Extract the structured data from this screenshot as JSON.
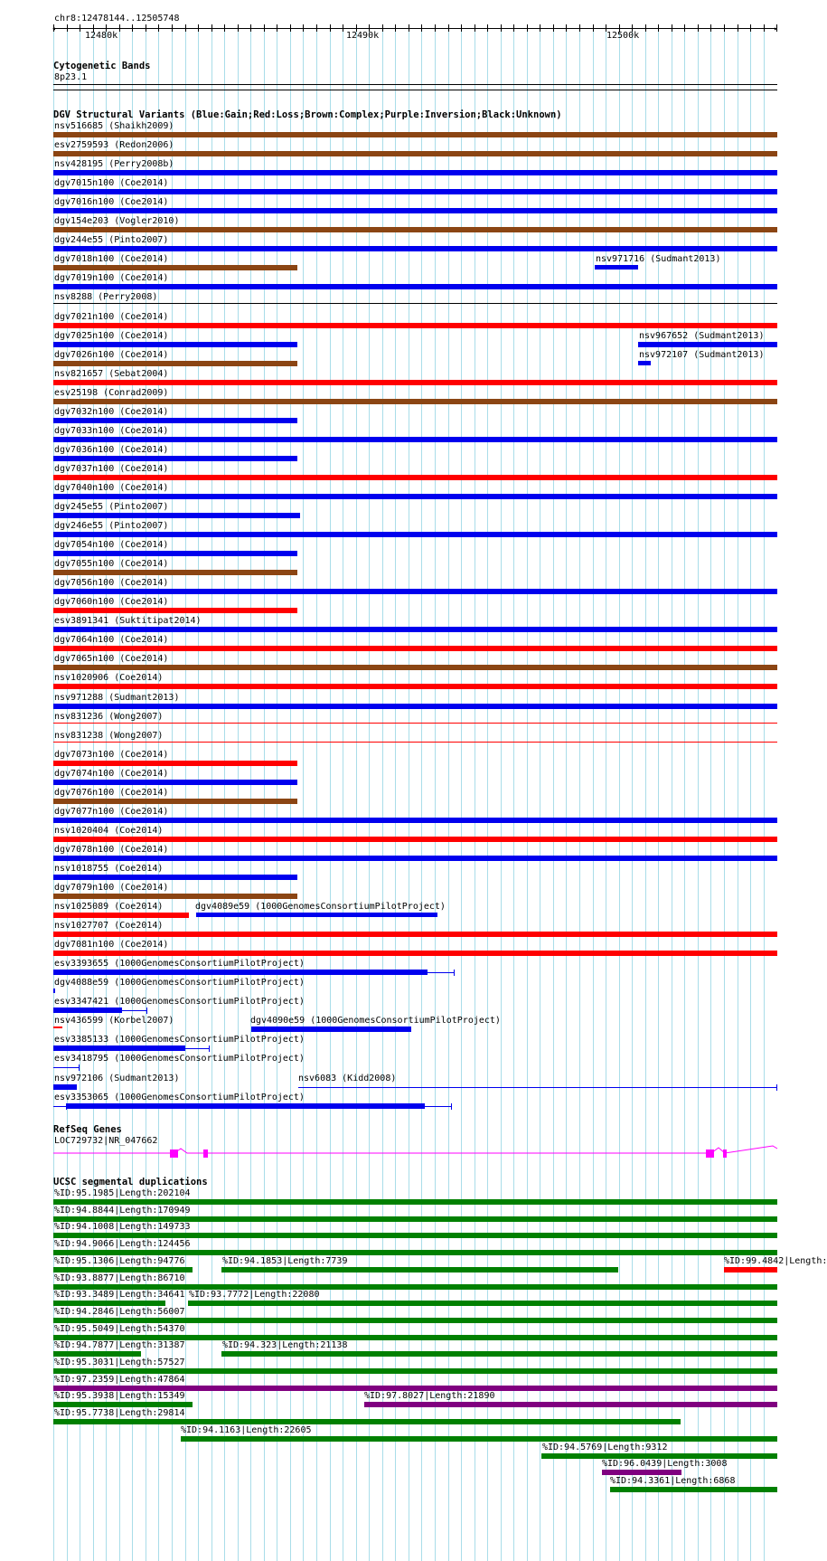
{
  "ruler": {
    "region": "chr8:12478144..12505748",
    "labels": [
      "12480k",
      "12490k",
      "12500k"
    ]
  },
  "tracks": {
    "cytoband": {
      "title": "Cytogenetic Bands",
      "band": "8p23.1"
    },
    "dgv": {
      "title": "DGV Structural Variants (Blue:Gain;Red:Loss;Brown:Complex;Purple:Inversion;Black:Unknown)"
    },
    "refseq": {
      "title": "RefSeq Genes",
      "gene": "LOC729732|NR_047662"
    },
    "segdup": {
      "title": "UCSC segmental duplications"
    }
  },
  "colors": {
    "gain": "#0000ee",
    "loss": "#ff0000",
    "complex": "#8b4513",
    "inversion": "#800080",
    "unknown": "#000000",
    "segdup_green": "#008000",
    "gene_magenta": "#ff00ff",
    "grid": "#a9dde9"
  },
  "dgv_rows": [
    [
      {
        "label": "nsv516685 (Shaikh2009)",
        "type": "complex",
        "bar": "full"
      }
    ],
    [
      {
        "label": "esv2759593 (Redon2006)",
        "type": "complex",
        "bar": "full"
      }
    ],
    [
      {
        "label": "nsv428195 (Perry2008b)",
        "type": "gain",
        "bar": "full"
      }
    ],
    [
      {
        "label": "dgv7015n100 (Coe2014)",
        "type": "gain",
        "bar": "full"
      }
    ],
    [
      {
        "label": "dgv7016n100 (Coe2014)",
        "type": "gain",
        "bar": "full"
      }
    ],
    [
      {
        "label": "dgv154e203 (Vogler2010)",
        "type": "complex",
        "bar": "full"
      }
    ],
    [
      {
        "label": "dgv244e55 (Pinto2007)",
        "type": "gain",
        "bar": "full"
      }
    ],
    [
      {
        "label": "dgv7018n100 (Coe2014)",
        "type": "complex",
        "bar": "short"
      },
      {
        "label": "nsv971716 (Sudmant2013)",
        "type": "gain",
        "bar": "s971716"
      }
    ],
    [
      {
        "label": "dgv7019n100 (Coe2014)",
        "type": "gain",
        "bar": "full"
      }
    ],
    [
      {
        "label": "nsv8288 (Perry2008)",
        "type": "unknown",
        "bar": "fullthin"
      }
    ],
    [
      {
        "label": "dgv7021n100 (Coe2014)",
        "type": "loss",
        "bar": "full"
      }
    ],
    [
      {
        "label": "dgv7025n100 (Coe2014)",
        "type": "gain",
        "bar": "short"
      },
      {
        "label": "nsv967652 (Sudmant2013)",
        "type": "gain",
        "bar": "s967652"
      }
    ],
    [
      {
        "label": "dgv7026n100 (Coe2014)",
        "type": "complex",
        "bar": "short"
      },
      {
        "label": "nsv972107 (Sudmant2013)",
        "type": "gain",
        "bar": "s972107"
      }
    ],
    [
      {
        "label": "nsv821657 (Sebat2004)",
        "type": "loss",
        "bar": "full"
      }
    ],
    [
      {
        "label": "esv25198 (Conrad2009)",
        "type": "complex",
        "bar": "full"
      }
    ],
    [
      {
        "label": "dgv7032n100 (Coe2014)",
        "type": "gain",
        "bar": "short"
      }
    ],
    [
      {
        "label": "dgv7033n100 (Coe2014)",
        "type": "gain",
        "bar": "full"
      }
    ],
    [
      {
        "label": "dgv7036n100 (Coe2014)",
        "type": "gain",
        "bar": "short"
      }
    ],
    [
      {
        "label": "dgv7037n100 (Coe2014)",
        "type": "loss",
        "bar": "full"
      }
    ],
    [
      {
        "label": "dgv7040n100 (Coe2014)",
        "type": "gain",
        "bar": "full"
      }
    ],
    [
      {
        "label": "dgv245e55 (Pinto2007)",
        "type": "gain",
        "bar": "short2"
      }
    ],
    [
      {
        "label": "dgv246e55 (Pinto2007)",
        "type": "gain",
        "bar": "full"
      }
    ],
    [
      {
        "label": "dgv7054n100 (Coe2014)",
        "type": "gain",
        "bar": "short"
      }
    ],
    [
      {
        "label": "dgv7055n100 (Coe2014)",
        "type": "complex",
        "bar": "short"
      }
    ],
    [
      {
        "label": "dgv7056n100 (Coe2014)",
        "type": "gain",
        "bar": "full"
      }
    ],
    [
      {
        "label": "dgv7060n100 (Coe2014)",
        "type": "loss",
        "bar": "short"
      }
    ],
    [
      {
        "label": "esv3891341 (Suktitipat2014)",
        "type": "gain",
        "bar": "full"
      }
    ],
    [
      {
        "label": "dgv7064n100 (Coe2014)",
        "type": "loss",
        "bar": "full"
      }
    ],
    [
      {
        "label": "dgv7065n100 (Coe2014)",
        "type": "complex",
        "bar": "full"
      }
    ],
    [
      {
        "label": "nsv1020906 (Coe2014)",
        "type": "loss",
        "bar": "full"
      }
    ],
    [
      {
        "label": "nsv971288 (Sudmant2013)",
        "type": "gain",
        "bar": "full"
      }
    ],
    [
      {
        "label": "nsv831236 (Wong2007)",
        "type": "loss",
        "bar": "fullthin"
      }
    ],
    [
      {
        "label": "nsv831238 (Wong2007)",
        "type": "loss",
        "bar": "fullthin"
      }
    ],
    [
      {
        "label": "dgv7073n100 (Coe2014)",
        "type": "loss",
        "bar": "short"
      }
    ],
    [
      {
        "label": "dgv7074n100 (Coe2014)",
        "type": "gain",
        "bar": "short"
      }
    ],
    [
      {
        "label": "dgv7076n100 (Coe2014)",
        "type": "complex",
        "bar": "short"
      }
    ],
    [
      {
        "label": "dgv7077n100 (Coe2014)",
        "type": "gain",
        "bar": "full"
      }
    ],
    [
      {
        "label": "nsv1020404 (Coe2014)",
        "type": "loss",
        "bar": "full"
      }
    ],
    [
      {
        "label": "dgv7078n100 (Coe2014)",
        "type": "gain",
        "bar": "full"
      }
    ],
    [
      {
        "label": "nsv1018755 (Coe2014)",
        "type": "gain",
        "bar": "short"
      }
    ],
    [
      {
        "label": "dgv7079n100 (Coe2014)",
        "type": "complex",
        "bar": "short"
      }
    ],
    [
      {
        "label": "nsv1025089 (Coe2014)",
        "type": "loss",
        "bar": "s1025089"
      },
      {
        "label": "dgv4089e59 (1000GenomesConsortiumPilotProject)",
        "type": "gain",
        "bar": "s4089"
      }
    ],
    [
      {
        "label": "nsv1027707 (Coe2014)",
        "type": "loss",
        "bar": "full"
      }
    ],
    [
      {
        "label": "dgv7081n100 (Coe2014)",
        "type": "loss",
        "bar": "full"
      }
    ],
    [
      {
        "label": "esv3393655 (1000GenomesConsortiumPilotProject)",
        "type": "gain",
        "bar": "s3393655"
      }
    ],
    [
      {
        "label": "dgv4088e59 (1000GenomesConsortiumPilotProject)",
        "type": "gain",
        "bar": "s4088"
      }
    ],
    [
      {
        "label": "esv3347421 (1000GenomesConsortiumPilotProject)",
        "type": "gain",
        "bar": "s3347421"
      }
    ],
    [
      {
        "label": "nsv436599 (Korbel2007)",
        "type": "loss",
        "bar": "s436599"
      },
      {
        "label": "dgv4090e59 (1000GenomesConsortiumPilotProject)",
        "type": "gain",
        "bar": "s4090"
      }
    ],
    [
      {
        "label": "esv3385133 (1000GenomesConsortiumPilotProject)",
        "type": "gain",
        "bar": "s3385133"
      }
    ],
    [
      {
        "label": "esv3418795 (1000GenomesConsortiumPilotProject)",
        "type": "gain",
        "bar": "s3418795"
      }
    ],
    [
      {
        "label": "nsv972106 (Sudmant2013)",
        "type": "gain",
        "bar": "s972106"
      },
      {
        "label": "nsv6083 (Kidd2008)",
        "type": "gain",
        "bar": "s6083"
      }
    ],
    [
      {
        "label": "esv3353065 (1000GenomesConsortiumPilotProject)",
        "type": "gain",
        "bar": "s3353065"
      }
    ]
  ],
  "segdup_rows": [
    [
      {
        "label": "%ID:95.1985|Length:202104",
        "color": "green",
        "bar": "full"
      }
    ],
    [
      {
        "label": "%ID:94.8844|Length:170949",
        "color": "green",
        "bar": "full"
      }
    ],
    [
      {
        "label": "%ID:94.1008|Length:149733",
        "color": "green",
        "bar": "full"
      }
    ],
    [
      {
        "label": "%ID:94.9066|Length:124456",
        "color": "green",
        "bar": "full"
      }
    ],
    [
      {
        "label": "%ID:95.1306|Length:94776",
        "color": "green",
        "bar": "d1"
      },
      {
        "label": "%ID:94.1853|Length:7739",
        "color": "green",
        "bar": "d2"
      },
      {
        "label": "%ID:99.4842|Length:",
        "color": "red",
        "bar": "d3"
      }
    ],
    [
      {
        "label": "%ID:93.8877|Length:86710",
        "color": "green",
        "bar": "full"
      }
    ],
    [
      {
        "label": "%ID:93.3489|Length:34641",
        "color": "green",
        "bar": "d4"
      },
      {
        "label": "%ID:93.7772|Length:22080",
        "color": "green",
        "bar": "d5"
      }
    ],
    [
      {
        "label": "%ID:94.2846|Length:56007",
        "color": "green",
        "bar": "full"
      }
    ],
    [
      {
        "label": "%ID:95.5049|Length:54370",
        "color": "green",
        "bar": "full"
      }
    ],
    [
      {
        "label": "%ID:94.7877|Length:31387",
        "color": "green",
        "bar": "d6"
      },
      {
        "label": "%ID:94.323|Length:21138",
        "color": "green",
        "bar": "d7"
      }
    ],
    [
      {
        "label": "%ID:95.3031|Length:57527",
        "color": "green",
        "bar": "full"
      }
    ],
    [
      {
        "label": "%ID:97.2359|Length:47864",
        "color": "purple",
        "bar": "full"
      }
    ],
    [
      {
        "label": "%ID:95.3938|Length:15349",
        "color": "green",
        "bar": "d8"
      },
      {
        "label": "%ID:97.8027|Length:21890",
        "color": "purple",
        "bar": "d9"
      }
    ],
    [
      {
        "label": "%ID:95.7738|Length:29814",
        "color": "green",
        "bar": "d10"
      }
    ],
    [
      {
        "label": "%ID:94.1163|Length:22605",
        "color": "green",
        "bar": "d11"
      }
    ],
    [
      {
        "label": "%ID:94.5769|Length:9312",
        "color": "green",
        "bar": "d12"
      }
    ],
    [
      {
        "label": "%ID:96.0439|Length:3008",
        "color": "purple",
        "bar": "d13"
      }
    ],
    [
      {
        "label": "%ID:94.3361|Length:6868",
        "color": "green",
        "bar": "d14"
      }
    ]
  ]
}
